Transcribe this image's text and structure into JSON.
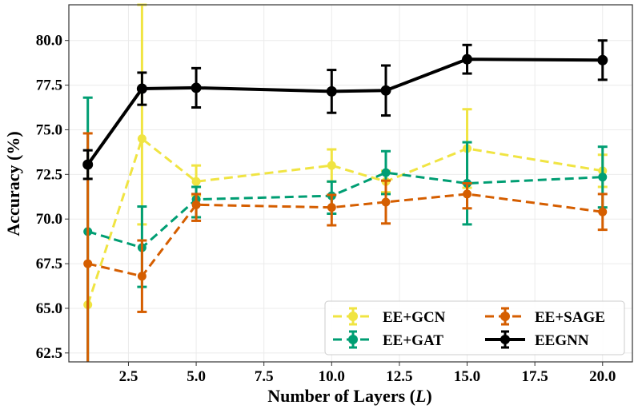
{
  "chart_data": {
    "type": "line",
    "title": "",
    "xlabel": "Number of Layers (",
    "xlabel_var": "L",
    "xlabel_close": ")",
    "ylabel": "Accuracy (%)",
    "xlim": [
      0.3,
      21.1
    ],
    "ylim": [
      62.0,
      82.0
    ],
    "xticks": [
      2.5,
      5.0,
      7.5,
      10.0,
      12.5,
      15.0,
      17.5,
      20.0
    ],
    "yticks": [
      62.5,
      65.0,
      67.5,
      70.0,
      72.5,
      75.0,
      77.5,
      80.0
    ],
    "x": [
      1,
      3,
      5,
      10,
      12,
      15,
      20
    ],
    "grid": true,
    "legend_position": "lower-right",
    "series": [
      {
        "name": "EE+GCN",
        "color": "#f0e442",
        "dash": true,
        "marker": "circle",
        "values": [
          65.2,
          74.5,
          72.1,
          73.0,
          72.1,
          73.95,
          72.7
        ],
        "err": [
          [
            0.0,
            0.0
          ],
          [
            4.8,
            7.5
          ],
          [
            0.8,
            0.9
          ],
          [
            0.9,
            0.9
          ],
          [
            0.6,
            0.6
          ],
          [
            2.2,
            2.2
          ],
          [
            0.9,
            0.9
          ]
        ]
      },
      {
        "name": "EE+GAT",
        "color": "#009e73",
        "dash": true,
        "marker": "circle",
        "values": [
          69.3,
          68.4,
          71.1,
          71.3,
          72.6,
          72.0,
          72.35
        ],
        "err": [
          [
            7.5,
            7.5
          ],
          [
            2.2,
            2.3
          ],
          [
            1.0,
            0.7
          ],
          [
            1.0,
            0.8
          ],
          [
            1.2,
            1.2
          ],
          [
            2.3,
            2.3
          ],
          [
            1.7,
            1.7
          ]
        ]
      },
      {
        "name": "EE+SAGE",
        "color": "#d55e00",
        "dash": true,
        "marker": "circle",
        "values": [
          67.5,
          66.8,
          70.8,
          70.65,
          70.95,
          71.4,
          70.4
        ],
        "err": [
          [
            7.3,
            7.3
          ],
          [
            2.0,
            2.0
          ],
          [
            0.9,
            0.6
          ],
          [
            1.0,
            0.7
          ],
          [
            1.2,
            1.2
          ],
          [
            0.8,
            0.6
          ],
          [
            1.0,
            1.0
          ]
        ]
      },
      {
        "name": "EEGNN",
        "color": "#000000",
        "dash": false,
        "marker": "circle",
        "values": [
          73.05,
          77.3,
          77.35,
          77.15,
          77.2,
          78.95,
          78.9
        ],
        "err": [
          [
            0.8,
            0.8
          ],
          [
            0.9,
            0.9
          ],
          [
            1.1,
            1.1
          ],
          [
            1.2,
            1.2
          ],
          [
            1.4,
            1.4
          ],
          [
            0.8,
            0.8
          ],
          [
            1.1,
            1.1
          ]
        ]
      }
    ],
    "legend": {
      "rows": [
        [
          {
            "label": "EE+GCN",
            "series": 0
          },
          {
            "label": "EE+SAGE",
            "series": 2
          }
        ],
        [
          {
            "label": "EE+GAT",
            "series": 1
          },
          {
            "label": "EEGNN",
            "series": 3
          }
        ]
      ]
    }
  }
}
